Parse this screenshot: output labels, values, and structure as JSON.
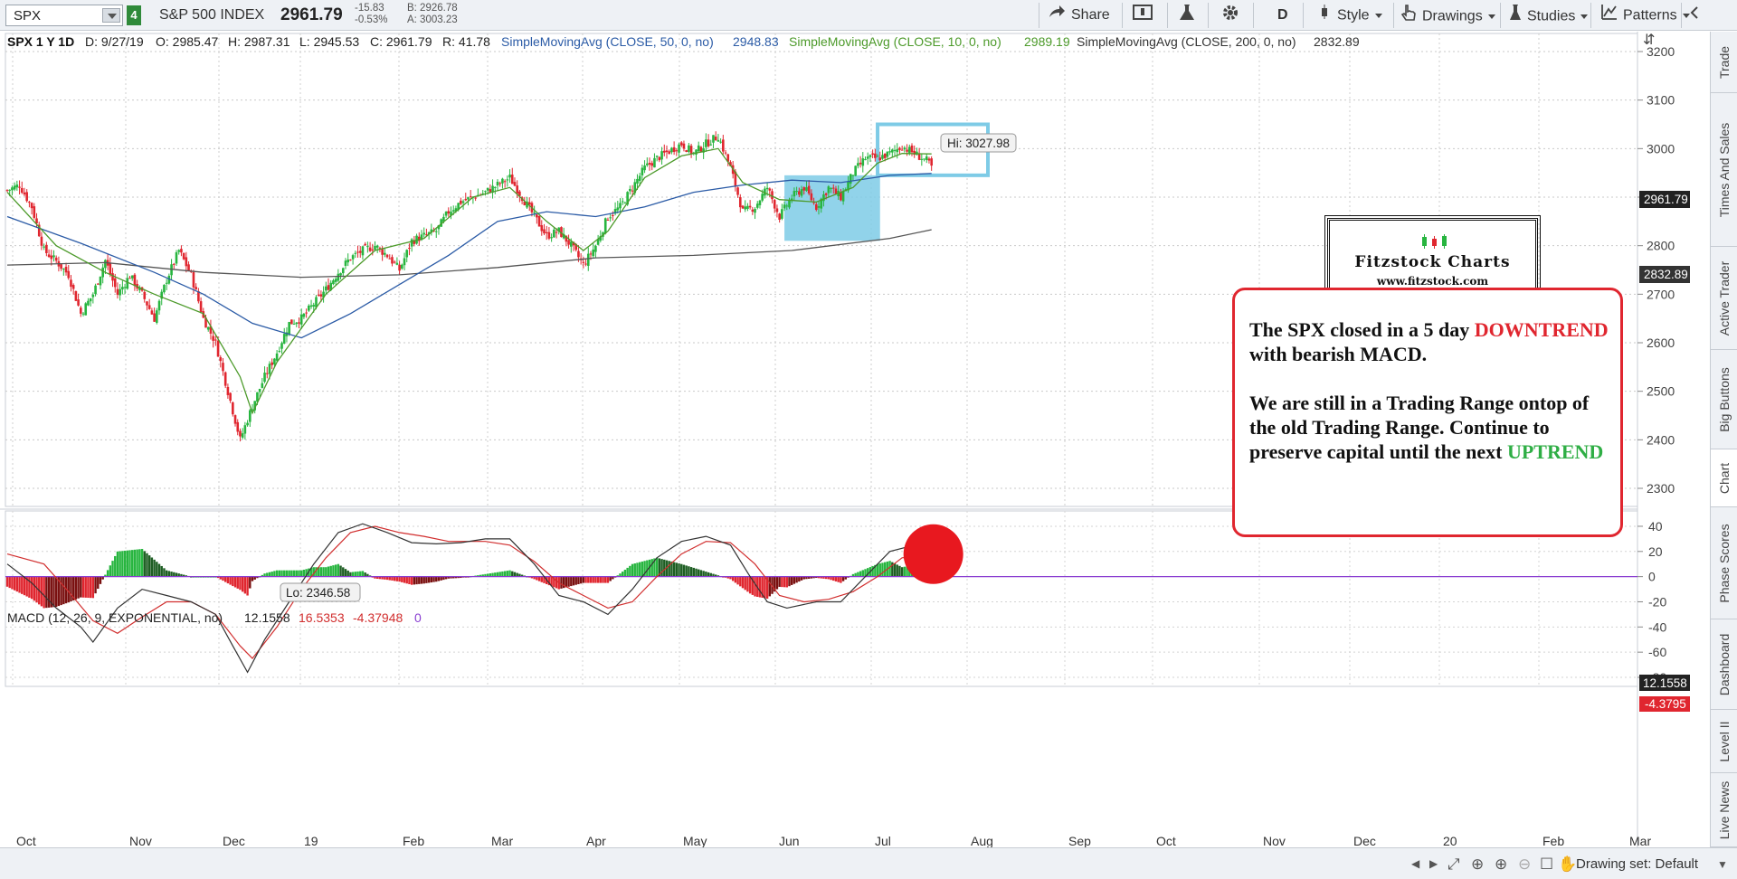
{
  "toolbar": {
    "symbol": "SPX",
    "link_badge": "4",
    "index_name": "S&P 500 INDEX",
    "last_price": "2961.79",
    "change": "-15.83",
    "change_pct": "-0.53%",
    "bid": "B: 2926.78",
    "ask": "A: 3003.23",
    "share_label": "Share",
    "period_label": "D",
    "style_label": "Style",
    "drawings_label": "Drawings",
    "studies_label": "Studies",
    "patterns_label": "Patterns"
  },
  "header": {
    "title": "SPX 1 Y 1D",
    "date": "D: 9/27/19",
    "open": "O: 2985.47",
    "high": "H: 2987.31",
    "low": "L: 2945.53",
    "close": "C: 2961.79",
    "range": "R: 41.78",
    "sma50_label": "SimpleMovingAvg (CLOSE, 50, 0, no)",
    "sma50_value": "2948.83",
    "sma10_label": "SimpleMovingAvg (CLOSE, 10, 0, no)",
    "sma10_value": "2989.19",
    "sma200_label": "SimpleMovingAvg (CLOSE, 200, 0, no)",
    "sma200_value": "2832.89"
  },
  "macd_header": {
    "label": "MACD (12, 26, 9, EXPONENTIAL, no)",
    "value": "12.1558",
    "avg": "16.5353",
    "diff": "-4.37948",
    "zero": "0"
  },
  "annotation": {
    "logo_title": "Fitzstock Charts",
    "logo_url": "www.fitzstock.com",
    "line1_pre": "The SPX closed in a 5 day",
    "line1_red": "DOWNTREND",
    "line1_post": "with bearish MACD.",
    "line2": "We are still in a Trading Range ontop of the old Trading Range. Continue to preserve capital until the next",
    "line2_green": "UPTREND"
  },
  "right_tabs": [
    "Trade",
    "Times And Sales",
    "Active Trader",
    "Big Buttons",
    "Chart",
    "Phase Scores",
    "Dashboard",
    "Level II",
    "Live News"
  ],
  "status": {
    "drawing_set": "Drawing set: Default"
  },
  "colors": {
    "up": "#27b53f",
    "down": "#e0262f",
    "sma10": "#4c9a2a",
    "sma50": "#2b5ba6",
    "sma200": "#555555",
    "macd_line": "#333333",
    "macd_avg": "#d12e2e",
    "zero_line": "#8a3fd1",
    "highlight": "#7ecbe6"
  },
  "chart_data": [
    {
      "type": "candlestick",
      "title": "SPX 1 Y 1D",
      "ylim": [
        2300,
        3200
      ],
      "yticks": [
        2300,
        2400,
        2500,
        2600,
        2700,
        2800,
        2900,
        3000,
        3100,
        3200
      ],
      "x_labels": [
        "Oct",
        "Nov",
        "Dec",
        "19",
        "Feb",
        "Mar",
        "Apr",
        "May",
        "Jun",
        "Jul",
        "Aug",
        "Sep",
        "Oct",
        "Nov",
        "Dec",
        "20",
        "Feb",
        "Mar"
      ],
      "price_tags": {
        "last": "2961.79",
        "sma200": "2832.89"
      },
      "hi_label": "Hi: 3027.98",
      "lo_label": "Lo: 2346.58",
      "close_points": [
        [
          0,
          2914
        ],
        [
          5,
          2925
        ],
        [
          10,
          2880
        ],
        [
          15,
          2790
        ],
        [
          20,
          2768
        ],
        [
          25,
          2740
        ],
        [
          30,
          2660
        ],
        [
          35,
          2700
        ],
        [
          40,
          2770
        ],
        [
          45,
          2700
        ],
        [
          50,
          2738
        ],
        [
          55,
          2700
        ],
        [
          60,
          2650
        ],
        [
          65,
          2730
        ],
        [
          70,
          2790
        ],
        [
          75,
          2740
        ],
        [
          80,
          2650
        ],
        [
          85,
          2600
        ],
        [
          90,
          2500
        ],
        [
          95,
          2400
        ],
        [
          100,
          2470
        ],
        [
          105,
          2530
        ],
        [
          110,
          2580
        ],
        [
          115,
          2640
        ],
        [
          120,
          2650
        ],
        [
          125,
          2680
        ],
        [
          130,
          2710
        ],
        [
          135,
          2745
        ],
        [
          140,
          2775
        ],
        [
          145,
          2790
        ],
        [
          150,
          2800
        ],
        [
          155,
          2780
        ],
        [
          160,
          2750
        ],
        [
          165,
          2810
        ],
        [
          170,
          2820
        ],
        [
          175,
          2830
        ],
        [
          180,
          2870
        ],
        [
          185,
          2890
        ],
        [
          190,
          2900
        ],
        [
          195,
          2910
        ],
        [
          200,
          2925
        ],
        [
          205,
          2940
        ],
        [
          210,
          2900
        ],
        [
          215,
          2860
        ],
        [
          220,
          2820
        ],
        [
          225,
          2830
        ],
        [
          230,
          2800
        ],
        [
          235,
          2760
        ],
        [
          240,
          2800
        ],
        [
          245,
          2860
        ],
        [
          250,
          2880
        ],
        [
          255,
          2920
        ],
        [
          260,
          2960
        ],
        [
          265,
          2980
        ],
        [
          270,
          2995
        ],
        [
          275,
          3010
        ],
        [
          280,
          2990
        ],
        [
          285,
          3010
        ],
        [
          290,
          3026
        ],
        [
          295,
          2960
        ],
        [
          300,
          2870
        ],
        [
          305,
          2880
        ],
        [
          310,
          2920
        ],
        [
          315,
          2860
        ],
        [
          320,
          2900
        ],
        [
          325,
          2920
        ],
        [
          330,
          2880
        ],
        [
          335,
          2920
        ],
        [
          340,
          2900
        ],
        [
          345,
          2950
        ],
        [
          350,
          2980
        ],
        [
          355,
          2980
        ],
        [
          360,
          2990
        ],
        [
          365,
          3005
        ],
        [
          370,
          2990
        ],
        [
          375,
          2975
        ],
        [
          377,
          2961.79
        ]
      ],
      "sma10": [
        [
          0,
          2910
        ],
        [
          20,
          2800
        ],
        [
          40,
          2745
        ],
        [
          60,
          2700
        ],
        [
          80,
          2660
        ],
        [
          95,
          2530
        ],
        [
          100,
          2455
        ],
        [
          110,
          2560
        ],
        [
          130,
          2700
        ],
        [
          150,
          2790
        ],
        [
          170,
          2815
        ],
        [
          190,
          2900
        ],
        [
          205,
          2920
        ],
        [
          220,
          2850
        ],
        [
          235,
          2790
        ],
        [
          245,
          2830
        ],
        [
          260,
          2940
        ],
        [
          275,
          2985
        ],
        [
          290,
          3000
        ],
        [
          300,
          2930
        ],
        [
          315,
          2895
        ],
        [
          330,
          2890
        ],
        [
          345,
          2920
        ],
        [
          355,
          2970
        ],
        [
          365,
          2990
        ],
        [
          377,
          2989
        ]
      ],
      "sma50": [
        [
          0,
          2860
        ],
        [
          30,
          2805
        ],
        [
          60,
          2745
        ],
        [
          80,
          2700
        ],
        [
          100,
          2640
        ],
        [
          120,
          2610
        ],
        [
          140,
          2660
        ],
        [
          160,
          2720
        ],
        [
          180,
          2780
        ],
        [
          200,
          2850
        ],
        [
          220,
          2870
        ],
        [
          240,
          2860
        ],
        [
          260,
          2880
        ],
        [
          280,
          2910
        ],
        [
          300,
          2925
        ],
        [
          320,
          2935
        ],
        [
          340,
          2930
        ],
        [
          360,
          2945
        ],
        [
          377,
          2948.83
        ]
      ],
      "sma200": [
        [
          0,
          2760
        ],
        [
          40,
          2765
        ],
        [
          80,
          2745
        ],
        [
          120,
          2735
        ],
        [
          160,
          2740
        ],
        [
          200,
          2755
        ],
        [
          240,
          2775
        ],
        [
          280,
          2780
        ],
        [
          320,
          2790
        ],
        [
          360,
          2815
        ],
        [
          377,
          2832.89
        ]
      ],
      "highlight_boxes": [
        {
          "x0": 317,
          "x1": 356,
          "y0": 2810,
          "y1": 2945,
          "style": "fill"
        },
        {
          "x0": 355,
          "x1": 400,
          "y0": 2945,
          "y1": 3050,
          "style": "outline"
        }
      ]
    },
    {
      "type": "macd",
      "title": "MACD (12, 26, 9, EXPONENTIAL, no)",
      "ylim": [
        -80,
        45
      ],
      "yticks": [
        -80,
        -60,
        -40,
        -20,
        0,
        20,
        40
      ],
      "price_tags": {
        "value": "12.1558",
        "diff": "-4.3795"
      },
      "value_line": [
        [
          0,
          10
        ],
        [
          10,
          -5
        ],
        [
          20,
          -25
        ],
        [
          30,
          -40
        ],
        [
          35,
          -52
        ],
        [
          45,
          -25
        ],
        [
          55,
          -10
        ],
        [
          65,
          -15
        ],
        [
          75,
          -20
        ],
        [
          85,
          -30
        ],
        [
          92,
          -55
        ],
        [
          98,
          -76
        ],
        [
          105,
          -50
        ],
        [
          115,
          -20
        ],
        [
          125,
          10
        ],
        [
          135,
          35
        ],
        [
          145,
          42
        ],
        [
          155,
          35
        ],
        [
          165,
          27
        ],
        [
          175,
          26
        ],
        [
          185,
          27
        ],
        [
          195,
          30
        ],
        [
          205,
          30
        ],
        [
          215,
          10
        ],
        [
          225,
          -15
        ],
        [
          235,
          -20
        ],
        [
          245,
          -30
        ],
        [
          255,
          -10
        ],
        [
          265,
          15
        ],
        [
          275,
          28
        ],
        [
          285,
          32
        ],
        [
          295,
          25
        ],
        [
          303,
          0
        ],
        [
          310,
          -20
        ],
        [
          318,
          -25
        ],
        [
          330,
          -20
        ],
        [
          340,
          -20
        ],
        [
          350,
          0
        ],
        [
          360,
          20
        ],
        [
          370,
          25
        ],
        [
          377,
          12.1558
        ]
      ],
      "avg_line": [
        [
          0,
          18
        ],
        [
          15,
          10
        ],
        [
          25,
          -12
        ],
        [
          35,
          -35
        ],
        [
          45,
          -45
        ],
        [
          55,
          -32
        ],
        [
          65,
          -20
        ],
        [
          75,
          -20
        ],
        [
          85,
          -30
        ],
        [
          95,
          -55
        ],
        [
          100,
          -65
        ],
        [
          110,
          -40
        ],
        [
          120,
          -10
        ],
        [
          130,
          15
        ],
        [
          140,
          35
        ],
        [
          150,
          40
        ],
        [
          160,
          35
        ],
        [
          170,
          32
        ],
        [
          180,
          28
        ],
        [
          195,
          28
        ],
        [
          205,
          25
        ],
        [
          215,
          12
        ],
        [
          225,
          -5
        ],
        [
          235,
          -15
        ],
        [
          245,
          -25
        ],
        [
          255,
          -20
        ],
        [
          265,
          0
        ],
        [
          275,
          18
        ],
        [
          285,
          28
        ],
        [
          295,
          27
        ],
        [
          305,
          10
        ],
        [
          315,
          -15
        ],
        [
          325,
          -20
        ],
        [
          335,
          -18
        ],
        [
          345,
          -12
        ],
        [
          355,
          0
        ],
        [
          365,
          15
        ],
        [
          377,
          16.5353
        ]
      ],
      "highlight_circle": {
        "x": 377,
        "y": 15
      }
    }
  ]
}
